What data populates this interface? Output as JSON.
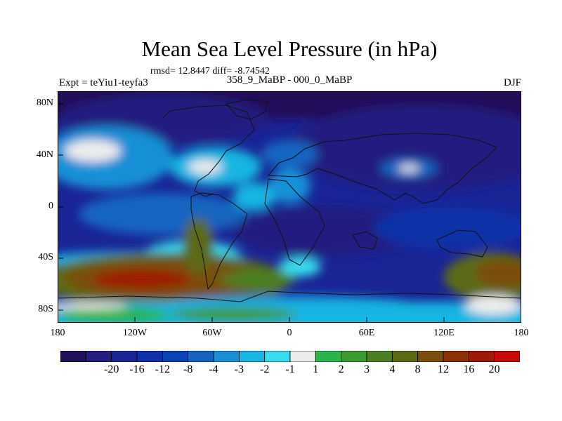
{
  "header": {
    "title": "Mean Sea Level Pressure (in hPa)",
    "stats": "rmsd= 12.8447 diff= -8.74542",
    "experiment": "Expt = teYiu1-teyfa3",
    "subtitle": "358_9_MaBP - 000_0_MaBP",
    "season": "DJF"
  },
  "chart_data": {
    "type": "heatmap",
    "title": "Mean Sea Level Pressure (in hPa)",
    "variable": "Mean Sea Level Pressure difference",
    "units": "hPa",
    "x_range": [
      -180,
      180
    ],
    "y_range": [
      -90,
      90
    ],
    "y_ticks": [
      {
        "value": 80,
        "label": "80N"
      },
      {
        "value": 40,
        "label": "40N"
      },
      {
        "value": 0,
        "label": "0"
      },
      {
        "value": -40,
        "label": "40S"
      },
      {
        "value": -80,
        "label": "80S"
      }
    ],
    "x_ticks": [
      {
        "value": -180,
        "label": "180"
      },
      {
        "value": -120,
        "label": "120W"
      },
      {
        "value": -60,
        "label": "60W"
      },
      {
        "value": 0,
        "label": "0"
      },
      {
        "value": 60,
        "label": "60E"
      },
      {
        "value": 120,
        "label": "120E"
      },
      {
        "value": 180,
        "label": "180"
      }
    ],
    "colorbar": {
      "colors": [
        "#22115a",
        "#241c80",
        "#1a2495",
        "#0d31a8",
        "#0a45b5",
        "#1565c0",
        "#1990d6",
        "#16b5e2",
        "#38dced",
        "#ececec",
        "#2bb44a",
        "#3d9a2e",
        "#4a8022",
        "#5c6a14",
        "#7a4e0c",
        "#8c3206",
        "#9c1a06",
        "#c80a06"
      ],
      "labels": [
        "-20",
        "-16",
        "-12",
        "-8",
        "-4",
        "-3",
        "-2",
        "-1",
        "1",
        "2",
        "3",
        "4",
        "8",
        "12",
        "16",
        "20"
      ]
    }
  }
}
